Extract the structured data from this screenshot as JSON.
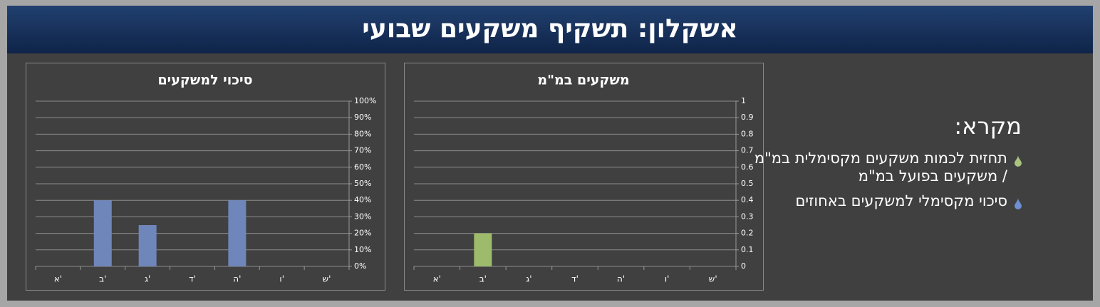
{
  "header": {
    "title": "אשקלון: תשקיף משקעים שבועי"
  },
  "legend": {
    "title": "מקרא:",
    "items": [
      {
        "label": "תחזית לכמות משקעים מקסימלית במ\"מ / משקעים בפועל במ\"מ",
        "color": "#a9c47f"
      },
      {
        "label": "סיכוי מקסימלי למשקעים באחוזים",
        "color": "#6f8fd0"
      }
    ]
  },
  "chart_data": [
    {
      "type": "bar",
      "title": "סיכוי למשקעים",
      "categories": [
        "א'",
        "ב'",
        "ג'",
        "ד'",
        "ה'",
        "ו'",
        "ש'"
      ],
      "values": [
        0,
        40,
        25,
        0,
        40,
        0,
        0
      ],
      "color": "#6f86bb",
      "ylim": [
        0,
        100
      ],
      "yticks": [
        {
          "value": 0,
          "label": "0%"
        },
        {
          "value": 10,
          "label": "10%"
        },
        {
          "value": 20,
          "label": "20%"
        },
        {
          "value": 30,
          "label": "30%"
        },
        {
          "value": 40,
          "label": "40%"
        },
        {
          "value": 50,
          "label": "50%"
        },
        {
          "value": 60,
          "label": "60%"
        },
        {
          "value": 70,
          "label": "70%"
        },
        {
          "value": 80,
          "label": "80%"
        },
        {
          "value": 90,
          "label": "90%"
        },
        {
          "value": 100,
          "label": "100%"
        }
      ],
      "grid": true
    },
    {
      "type": "bar",
      "title": "משקעים במ\"מ",
      "categories": [
        "א'",
        "ב'",
        "ג'",
        "ד'",
        "ה'",
        "ו'",
        "ש'"
      ],
      "values": [
        0,
        0.2,
        0,
        0,
        0,
        0,
        0
      ],
      "color": "#9dbb6a",
      "ylim": [
        0,
        1
      ],
      "yticks": [
        0,
        0.1,
        0.2,
        0.3,
        0.4,
        0.5,
        0.6,
        0.7,
        0.8,
        0.9,
        1
      ],
      "grid": true
    }
  ]
}
